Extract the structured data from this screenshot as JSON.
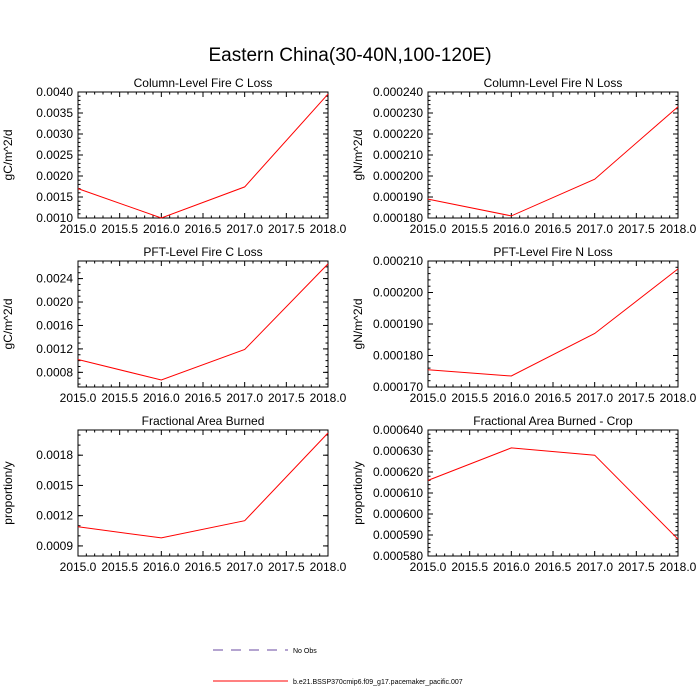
{
  "figure": {
    "title": "Eastern China(30-40N,100-120E)",
    "series_color": "#ff0000",
    "obs_color": "#6a4aa0"
  },
  "legend": {
    "obs_label": "No Obs",
    "model_label": "b.e21.BSSP370cmip6.f09_g17.pacemaker_pacific.007"
  },
  "chart_data": [
    {
      "type": "line",
      "title": "Column-Level Fire C Loss",
      "ylabel": "gC/m^2/d",
      "xlim": [
        2015.0,
        2018.0
      ],
      "ylim": [
        0.001,
        0.004
      ],
      "xticks": [
        2015.0,
        2015.5,
        2016.0,
        2016.5,
        2017.0,
        2017.5,
        2018.0
      ],
      "xtick_labels": [
        "2015.0",
        "2015.5",
        "2016.0",
        "2016.5",
        "2017.0",
        "2017.5",
        "2018.0"
      ],
      "yticks": [
        0.001,
        0.0015,
        0.002,
        0.0025,
        0.003,
        0.0035,
        0.004
      ],
      "ytick_labels": [
        "0.0010",
        "0.0015",
        "0.0020",
        "0.0025",
        "0.0030",
        "0.0035",
        "0.0040"
      ],
      "yminor": 0.0001,
      "x": [
        2015,
        2016,
        2017,
        2018
      ],
      "y": [
        0.0017,
        0.001,
        0.00174,
        0.00395
      ]
    },
    {
      "type": "line",
      "title": "Column-Level Fire N Loss",
      "ylabel": "gN/m^2/d",
      "xlim": [
        2015.0,
        2018.0
      ],
      "ylim": [
        0.00018,
        0.00024
      ],
      "xticks": [
        2015.0,
        2015.5,
        2016.0,
        2016.5,
        2017.0,
        2017.5,
        2018.0
      ],
      "xtick_labels": [
        "2015.0",
        "2015.5",
        "2016.0",
        "2016.5",
        "2017.0",
        "2017.5",
        "2018.0"
      ],
      "yticks": [
        0.00018,
        0.00019,
        0.0002,
        0.00021,
        0.00022,
        0.00023,
        0.00024
      ],
      "ytick_labels": [
        "0.000180",
        "0.000190",
        "0.000200",
        "0.000210",
        "0.000220",
        "0.000230",
        "0.000240"
      ],
      "yminor": 2e-06,
      "x": [
        2015,
        2016,
        2017,
        2018
      ],
      "y": [
        0.000189,
        0.000181,
        0.0001985,
        0.000233
      ]
    },
    {
      "type": "line",
      "title": "PFT-Level Fire C Loss",
      "ylabel": "gC/m^2/d",
      "xlim": [
        2015.0,
        2018.0
      ],
      "ylim": [
        0.00055,
        0.0027
      ],
      "xticks": [
        2015.0,
        2015.5,
        2016.0,
        2016.5,
        2017.0,
        2017.5,
        2018.0
      ],
      "xtick_labels": [
        "2015.0",
        "2015.5",
        "2016.0",
        "2016.5",
        "2017.0",
        "2017.5",
        "2018.0"
      ],
      "yticks": [
        0.0008,
        0.0012,
        0.0016,
        0.002,
        0.0024
      ],
      "ytick_labels": [
        "0.0008",
        "0.0012",
        "0.0016",
        "0.0020",
        "0.0024"
      ],
      "yminor": 0.0001,
      "x": [
        2015,
        2016,
        2017,
        2018
      ],
      "y": [
        0.00102,
        0.00067,
        0.00119,
        0.00265
      ]
    },
    {
      "type": "line",
      "title": "PFT-Level Fire N Loss",
      "ylabel": "gN/m^2/d",
      "xlim": [
        2015.0,
        2018.0
      ],
      "ylim": [
        0.00017,
        0.00021
      ],
      "xticks": [
        2015.0,
        2015.5,
        2016.0,
        2016.5,
        2017.0,
        2017.5,
        2018.0
      ],
      "xtick_labels": [
        "2015.0",
        "2015.5",
        "2016.0",
        "2016.5",
        "2017.0",
        "2017.5",
        "2018.0"
      ],
      "yticks": [
        0.00017,
        0.00018,
        0.00019,
        0.0002,
        0.00021
      ],
      "ytick_labels": [
        "0.000170",
        "0.000180",
        "0.000190",
        "0.000200",
        "0.000210"
      ],
      "yminor": 2e-06,
      "x": [
        2015,
        2016,
        2017,
        2018
      ],
      "y": [
        0.0001755,
        0.0001735,
        0.000187,
        0.0002075
      ]
    },
    {
      "type": "line",
      "title": "Fractional Area Burned",
      "ylabel": "proportion/y",
      "xlim": [
        2015.0,
        2018.0
      ],
      "ylim": [
        0.0008,
        0.00205
      ],
      "xticks": [
        2015.0,
        2015.5,
        2016.0,
        2016.5,
        2017.0,
        2017.5,
        2018.0
      ],
      "xtick_labels": [
        "2015.0",
        "2015.5",
        "2016.0",
        "2016.5",
        "2017.0",
        "2017.5",
        "2018.0"
      ],
      "yticks": [
        0.0009,
        0.0012,
        0.0015,
        0.0018
      ],
      "ytick_labels": [
        "0.0009",
        "0.0012",
        "0.0015",
        "0.0018"
      ],
      "yminor": 0.0001,
      "x": [
        2015,
        2016,
        2017,
        2018
      ],
      "y": [
        0.00109,
        0.00098,
        0.00115,
        0.00202
      ]
    },
    {
      "type": "line",
      "title": "Fractional Area Burned - Crop",
      "ylabel": "proportion/y",
      "xlim": [
        2015.0,
        2018.0
      ],
      "ylim": [
        0.00058,
        0.00064
      ],
      "xticks": [
        2015.0,
        2015.5,
        2016.0,
        2016.5,
        2017.0,
        2017.5,
        2018.0
      ],
      "xtick_labels": [
        "2015.0",
        "2015.5",
        "2016.0",
        "2016.5",
        "2017.0",
        "2017.5",
        "2018.0"
      ],
      "yticks": [
        0.00058,
        0.00059,
        0.0006,
        0.00061,
        0.00062,
        0.00063,
        0.00064
      ],
      "ytick_labels": [
        "0.000580",
        "0.000590",
        "0.000600",
        "0.000610",
        "0.000620",
        "0.000630",
        "0.000640"
      ],
      "yminor": 2e-06,
      "x": [
        2015,
        2016,
        2017,
        2018
      ],
      "y": [
        0.000616,
        0.0006315,
        0.000628,
        0.000588
      ]
    }
  ]
}
